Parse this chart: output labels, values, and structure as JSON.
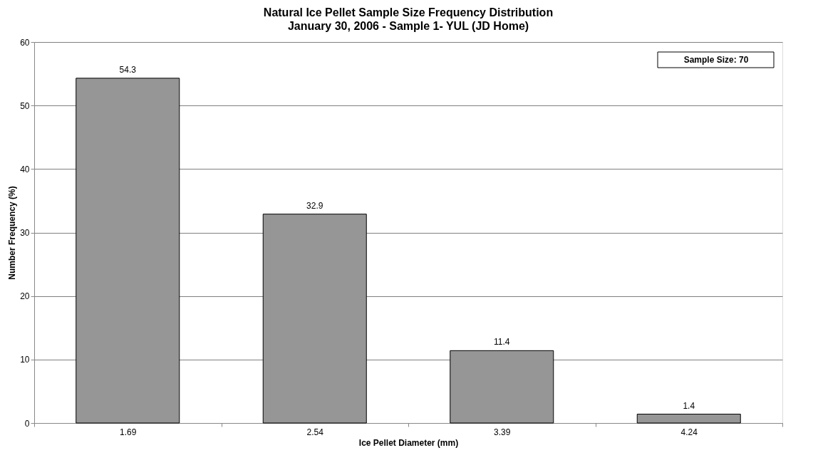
{
  "chart_data": {
    "type": "bar",
    "title": "Natural Ice Pellet Sample Size Frequency Distribution",
    "subtitle": "January 30, 2006 - Sample 1- YUL (JD Home)",
    "xlabel": "Ice Pellet Diameter (mm)",
    "ylabel": "Number Frequency (%)",
    "categories": [
      "1.69",
      "2.54",
      "3.39",
      "4.24"
    ],
    "values": [
      54.3,
      32.9,
      11.4,
      1.4
    ],
    "color": "#969696",
    "ylim": [
      0,
      60
    ],
    "yticks": [
      0,
      10,
      20,
      30,
      40,
      50,
      60
    ],
    "grid": "y",
    "data_labels": true,
    "annotations": [
      "Sample Size: 70"
    ]
  }
}
